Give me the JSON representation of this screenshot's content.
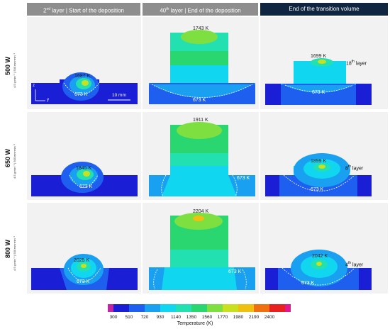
{
  "headers": [
    {
      "pre": "2",
      "sup": "nd",
      "post": " layer | Start of the deposition"
    },
    {
      "pre": "40",
      "sup": "th",
      "post": " layer | End of the deposition"
    },
    {
      "pre": "",
      "sup": "",
      "post": "End of the transition volume"
    }
  ],
  "rows": [
    {
      "power": "500 W",
      "speed": "4.5 g·min⁻¹ | 500 mm·min⁻¹",
      "temps": [
        "1687 K",
        "1743 K",
        "1699 K"
      ],
      "iso": [
        "673 K",
        "673 K",
        "673 K"
      ],
      "layer": {
        "pre": "18",
        "sup": "th",
        "post": " layer"
      }
    },
    {
      "power": "650 W",
      "speed": "4.5 g·min⁻¹ | 500 mm·min⁻¹",
      "temps": [
        "1845 K",
        "1911 K",
        "1899 K"
      ],
      "iso": [
        "673 K",
        "673 K",
        "673 K"
      ],
      "layer": {
        "pre": "8",
        "sup": "th",
        "post": " layer"
      }
    },
    {
      "power": "800 W",
      "speed": "4.5 g·min⁻¹ | 500 mm·min⁻¹",
      "temps": [
        "2025 K",
        "2204 K",
        "2042 K"
      ],
      "iso": [
        "673 K",
        "673 K",
        "673 K"
      ],
      "layer": {
        "pre": "4",
        "sup": "th",
        "post": " layer"
      }
    }
  ],
  "axes": {
    "z": "z",
    "y": "y",
    "scale": "10 mm"
  },
  "legend": {
    "title": "Temperature (K)",
    "ticks": [
      "300",
      "510",
      "720",
      "930",
      "1140",
      "1350",
      "1560",
      "1770",
      "1980",
      "2190",
      "2400"
    ],
    "colors": [
      "#c026a6",
      "#1a1fd6",
      "#1f5ff0",
      "#1aa0f0",
      "#10d6f0",
      "#22e0b0",
      "#2ad670",
      "#7ee040",
      "#c8e020",
      "#f0c010",
      "#f07010",
      "#e82020",
      "#e0188a"
    ]
  }
}
